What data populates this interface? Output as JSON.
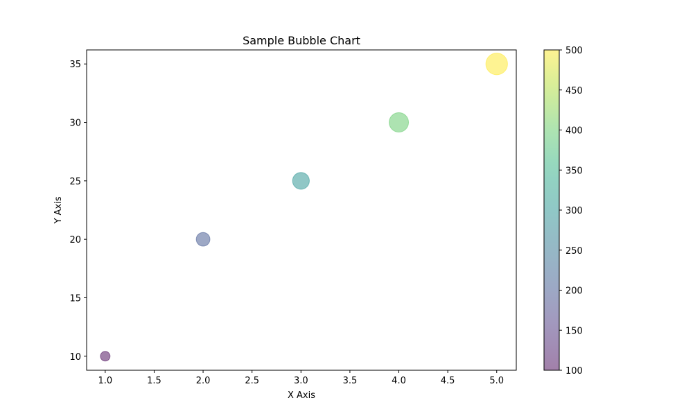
{
  "chart_data": {
    "type": "scatter",
    "title": "Sample Bubble Chart",
    "xlabel": "X Axis",
    "ylabel": "Y Axis",
    "xlim": [
      0.81,
      5.2
    ],
    "ylim": [
      8.8,
      36.2
    ],
    "xticks": [
      1.0,
      1.5,
      2.0,
      2.5,
      3.0,
      3.5,
      4.0,
      4.5,
      5.0
    ],
    "xtick_labels": [
      "1.0",
      "1.5",
      "2.0",
      "2.5",
      "3.0",
      "3.5",
      "4.0",
      "4.5",
      "5.0"
    ],
    "yticks": [
      10,
      15,
      20,
      25,
      30,
      35
    ],
    "ytick_labels": [
      "10",
      "15",
      "20",
      "25",
      "30",
      "35"
    ],
    "grid": false,
    "points": [
      {
        "x": 1,
        "y": 10,
        "size": 100,
        "color_value": 100
      },
      {
        "x": 2,
        "y": 20,
        "size": 200,
        "color_value": 200
      },
      {
        "x": 3,
        "y": 25,
        "size": 300,
        "color_value": 300
      },
      {
        "x": 4,
        "y": 30,
        "size": 400,
        "color_value": 400
      },
      {
        "x": 5,
        "y": 35,
        "size": 500,
        "color_value": 500
      }
    ],
    "colorbar": {
      "colormap": "viridis",
      "alpha": 0.5,
      "range": [
        100,
        500
      ],
      "ticks": [
        100,
        150,
        200,
        250,
        300,
        350,
        400,
        450,
        500
      ],
      "tick_labels": [
        "100",
        "150",
        "200",
        "250",
        "300",
        "350",
        "400",
        "450",
        "500"
      ]
    }
  }
}
